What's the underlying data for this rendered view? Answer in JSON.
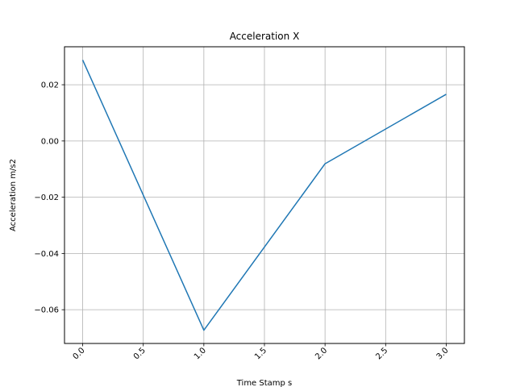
{
  "chart_data": {
    "type": "line",
    "title": "Acceleration X",
    "xlabel": "Time Stamp s",
    "ylabel": "Acceleration m/s2",
    "xlim": [
      -0.15,
      3.15
    ],
    "ylim": [
      -0.072,
      0.0335
    ],
    "grid": true,
    "xticks": [
      0.0,
      0.5,
      1.0,
      1.5,
      2.0,
      2.5,
      3.0
    ],
    "xtick_labels": [
      "0.0",
      "0.5",
      "1.0",
      "1.5",
      "2.0",
      "2.5",
      "3.0"
    ],
    "yticks": [
      0.02,
      0.0,
      -0.02,
      -0.04,
      -0.06
    ],
    "ytick_labels": [
      "0.02",
      "0.00",
      "−0.02",
      "−0.04",
      "−0.06"
    ],
    "series": [
      {
        "color": "#1f77b4",
        "x": [
          0.0,
          1.0,
          2.0,
          3.0
        ],
        "y": [
          0.0288,
          -0.0673,
          -0.0081,
          0.0166
        ]
      }
    ]
  }
}
